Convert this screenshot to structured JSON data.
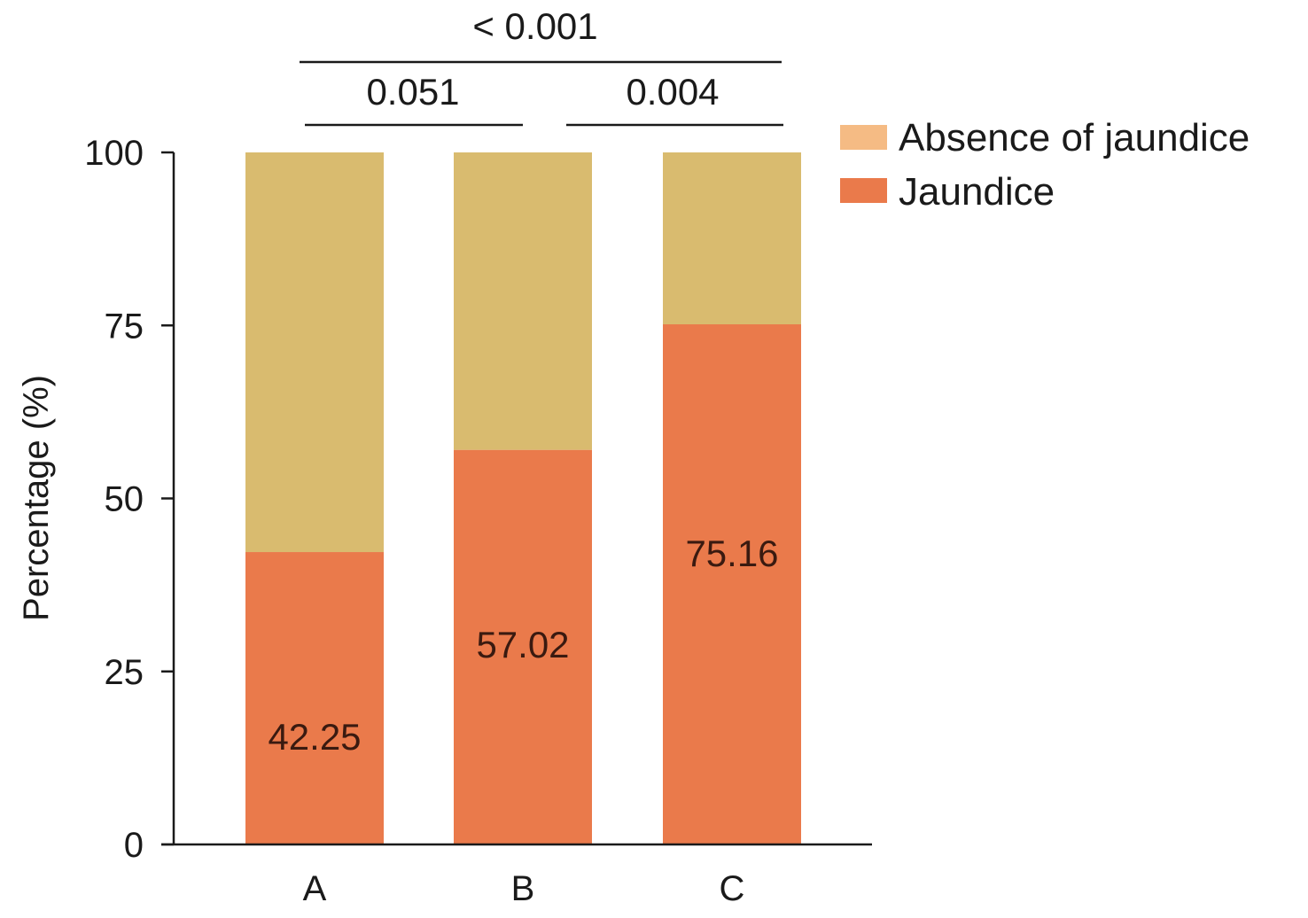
{
  "chart_data": {
    "type": "bar",
    "stacked": true,
    "categories": [
      "A",
      "B",
      "C"
    ],
    "series": [
      {
        "name": "Jaundice",
        "values": [
          42.25,
          57.02,
          75.16
        ],
        "color": "#ea7a4b"
      },
      {
        "name": "Absence of jaundice",
        "values": [
          57.75,
          42.98,
          24.84
        ],
        "color": "#d9bb6f"
      }
    ],
    "data_labels": [
      "42.25",
      "57.02",
      "75.16"
    ],
    "ylabel": "Percentage (%)",
    "xlabel": "",
    "ylim": [
      0,
      100
    ],
    "yticks": [
      0,
      25,
      50,
      75,
      100
    ],
    "legend": {
      "placement": "top-right",
      "entries": [
        {
          "label": "Absence of jaundice",
          "color": "#f5bb84"
        },
        {
          "label": "Jaundice",
          "color": "#ea7a4b"
        }
      ]
    },
    "significance": [
      {
        "from": "A",
        "to": "C",
        "label": "< 0.001"
      },
      {
        "from": "A",
        "to": "B",
        "label": "0.051"
      },
      {
        "from": "B",
        "to": "C",
        "label": "0.004"
      }
    ],
    "grid": false
  }
}
